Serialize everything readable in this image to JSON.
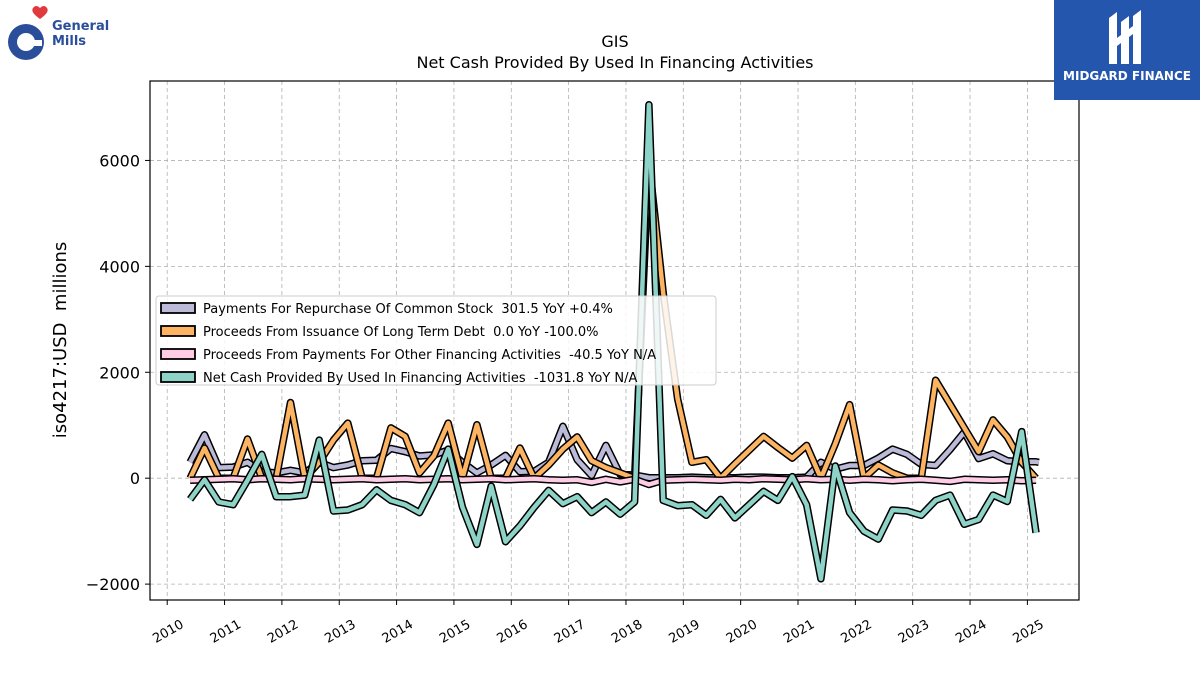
{
  "branding": {
    "left_logo_text": [
      "General",
      "Mills"
    ],
    "right_logo_text": "MIDGARD FINANCE"
  },
  "colors": {
    "repurchase": "#bcbad9",
    "issuance": "#fdb462",
    "other": "#fccde5",
    "net": "#8dd3c7",
    "outline": "#000000",
    "grid": "#b0b0b0"
  },
  "chart_data": {
    "type": "line",
    "title": "GIS",
    "subtitle": "Net Cash Provided By Used In Financing Activities",
    "xlabel": "",
    "ylabel": "iso4217:USD  millions",
    "xlim": [
      2009.7,
      2025.9
    ],
    "ylim": [
      -2300,
      7500
    ],
    "yticks": [
      -2000,
      0,
      2000,
      4000,
      6000
    ],
    "ytick_labels": [
      "−2000",
      "0",
      "2000",
      "4000",
      "6000"
    ],
    "xticks": [
      2010,
      2011,
      2012,
      2013,
      2014,
      2015,
      2016,
      2017,
      2018,
      2019,
      2020,
      2021,
      2022,
      2023,
      2024,
      2025
    ],
    "xtick_labels": [
      "2010",
      "2011",
      "2012",
      "2013",
      "2014",
      "2015",
      "2016",
      "2017",
      "2018",
      "2019",
      "2020",
      "2021",
      "2022",
      "2023",
      "2024",
      "2025"
    ],
    "grid": true,
    "legend_position": "center-left",
    "series": [
      {
        "name": "Payments For Repurchase Of Common Stock  301.5 YoY +0.4%",
        "color_key": "repurchase",
        "points": [
          [
            2010.4,
            300
          ],
          [
            2010.65,
            820
          ],
          [
            2010.9,
            200
          ],
          [
            2011.15,
            210
          ],
          [
            2011.4,
            300
          ],
          [
            2011.65,
            120
          ],
          [
            2011.9,
            100
          ],
          [
            2012.15,
            150
          ],
          [
            2012.4,
            100
          ],
          [
            2012.65,
            300
          ],
          [
            2012.9,
            200
          ],
          [
            2013.15,
            250
          ],
          [
            2013.4,
            330
          ],
          [
            2013.65,
            340
          ],
          [
            2013.9,
            560
          ],
          [
            2014.15,
            500
          ],
          [
            2014.4,
            420
          ],
          [
            2014.65,
            440
          ],
          [
            2014.9,
            530
          ],
          [
            2015.15,
            300
          ],
          [
            2015.4,
            100
          ],
          [
            2015.65,
            250
          ],
          [
            2015.9,
            430
          ],
          [
            2016.15,
            120
          ],
          [
            2016.4,
            130
          ],
          [
            2016.65,
            300
          ],
          [
            2016.9,
            980
          ],
          [
            2017.15,
            350
          ],
          [
            2017.4,
            50
          ],
          [
            2017.65,
            620
          ],
          [
            2017.9,
            70
          ],
          [
            2018.15,
            60
          ],
          [
            2018.4,
            10
          ],
          [
            2018.65,
            10
          ],
          [
            2018.9,
            10
          ],
          [
            2019.15,
            20
          ],
          [
            2019.4,
            10
          ],
          [
            2019.65,
            10
          ],
          [
            2019.9,
            10
          ],
          [
            2020.15,
            20
          ],
          [
            2020.4,
            20
          ],
          [
            2020.65,
            10
          ],
          [
            2020.9,
            10
          ],
          [
            2021.15,
            20
          ],
          [
            2021.4,
            300
          ],
          [
            2021.65,
            170
          ],
          [
            2021.9,
            240
          ],
          [
            2022.15,
            240
          ],
          [
            2022.4,
            380
          ],
          [
            2022.65,
            550
          ],
          [
            2022.9,
            450
          ],
          [
            2023.15,
            260
          ],
          [
            2023.4,
            240
          ],
          [
            2023.65,
            540
          ],
          [
            2023.9,
            870
          ],
          [
            2024.15,
            370
          ],
          [
            2024.4,
            460
          ],
          [
            2024.65,
            330
          ],
          [
            2024.9,
            310
          ],
          [
            2025.15,
            310
          ],
          [
            2025.2,
            300
          ]
        ]
      },
      {
        "name": "Proceeds From Issuance Of Long Term Debt  0.0 YoY -100.0%",
        "color_key": "issuance",
        "points": [
          [
            2010.4,
            0
          ],
          [
            2010.65,
            570
          ],
          [
            2010.9,
            0
          ],
          [
            2011.15,
            0
          ],
          [
            2011.4,
            740
          ],
          [
            2011.65,
            0
          ],
          [
            2011.9,
            0
          ],
          [
            2012.15,
            1430
          ],
          [
            2012.4,
            0
          ],
          [
            2012.65,
            300
          ],
          [
            2012.9,
            720
          ],
          [
            2013.15,
            1040
          ],
          [
            2013.4,
            0
          ],
          [
            2013.65,
            0
          ],
          [
            2013.9,
            950
          ],
          [
            2014.15,
            790
          ],
          [
            2014.4,
            100
          ],
          [
            2014.65,
            420
          ],
          [
            2014.9,
            1040
          ],
          [
            2015.15,
            0
          ],
          [
            2015.4,
            1010
          ],
          [
            2015.65,
            0
          ],
          [
            2015.9,
            0
          ],
          [
            2016.15,
            570
          ],
          [
            2016.4,
            0
          ],
          [
            2016.65,
            250
          ],
          [
            2016.9,
            550
          ],
          [
            2017.15,
            780
          ],
          [
            2017.4,
            330
          ],
          [
            2017.65,
            200
          ],
          [
            2017.9,
            100
          ],
          [
            2018.15,
            0
          ],
          [
            2018.4,
            6000
          ],
          [
            2018.65,
            3500
          ],
          [
            2018.9,
            1500
          ],
          [
            2019.15,
            300
          ],
          [
            2019.4,
            350
          ],
          [
            2019.65,
            0
          ],
          [
            2019.9,
            270
          ],
          [
            2020.15,
            530
          ],
          [
            2020.4,
            790
          ],
          [
            2020.65,
            580
          ],
          [
            2020.9,
            380
          ],
          [
            2021.15,
            620
          ],
          [
            2021.4,
            0
          ],
          [
            2021.65,
            650
          ],
          [
            2021.9,
            1390
          ],
          [
            2022.15,
            0
          ],
          [
            2022.4,
            250
          ],
          [
            2022.65,
            100
          ],
          [
            2022.9,
            0
          ],
          [
            2023.15,
            0
          ],
          [
            2023.4,
            1850
          ],
          [
            2023.65,
            1400
          ],
          [
            2023.9,
            950
          ],
          [
            2024.15,
            500
          ],
          [
            2024.4,
            1100
          ],
          [
            2024.65,
            780
          ],
          [
            2024.9,
            300
          ],
          [
            2025.15,
            0
          ]
        ]
      },
      {
        "name": "Proceeds From Payments For Other Financing Activities  -40.5 YoY N/A",
        "color_key": "other",
        "points": [
          [
            2010.4,
            -40
          ],
          [
            2010.65,
            -30
          ],
          [
            2010.9,
            -20
          ],
          [
            2011.15,
            -10
          ],
          [
            2011.4,
            -30
          ],
          [
            2011.65,
            -10
          ],
          [
            2011.9,
            -20
          ],
          [
            2012.15,
            -30
          ],
          [
            2012.4,
            -10
          ],
          [
            2012.65,
            -20
          ],
          [
            2012.9,
            -30
          ],
          [
            2013.15,
            -20
          ],
          [
            2013.4,
            -10
          ],
          [
            2013.65,
            -30
          ],
          [
            2013.9,
            -20
          ],
          [
            2014.15,
            -10
          ],
          [
            2014.4,
            -30
          ],
          [
            2014.65,
            -20
          ],
          [
            2014.9,
            -10
          ],
          [
            2015.15,
            -30
          ],
          [
            2015.4,
            -20
          ],
          [
            2015.65,
            -10
          ],
          [
            2015.9,
            -30
          ],
          [
            2016.15,
            -20
          ],
          [
            2016.4,
            -10
          ],
          [
            2016.65,
            -30
          ],
          [
            2016.9,
            -40
          ],
          [
            2017.15,
            -30
          ],
          [
            2017.4,
            -80
          ],
          [
            2017.65,
            -20
          ],
          [
            2017.9,
            -70
          ],
          [
            2018.15,
            -20
          ],
          [
            2018.4,
            -120
          ],
          [
            2018.65,
            -40
          ],
          [
            2018.9,
            -30
          ],
          [
            2019.15,
            -20
          ],
          [
            2019.4,
            -30
          ],
          [
            2019.65,
            -40
          ],
          [
            2019.9,
            -20
          ],
          [
            2020.15,
            -30
          ],
          [
            2020.4,
            -10
          ],
          [
            2020.65,
            -20
          ],
          [
            2020.9,
            -30
          ],
          [
            2021.15,
            -10
          ],
          [
            2021.4,
            -30
          ],
          [
            2021.65,
            -20
          ],
          [
            2021.9,
            -40
          ],
          [
            2022.15,
            -20
          ],
          [
            2022.4,
            -30
          ],
          [
            2022.65,
            -50
          ],
          [
            2022.9,
            -30
          ],
          [
            2023.15,
            -20
          ],
          [
            2023.4,
            -40
          ],
          [
            2023.65,
            -60
          ],
          [
            2023.9,
            -20
          ],
          [
            2024.15,
            -30
          ],
          [
            2024.4,
            -40
          ],
          [
            2024.65,
            -30
          ],
          [
            2024.9,
            -50
          ],
          [
            2025.15,
            -40
          ]
        ]
      },
      {
        "name": "Net Cash Provided By Used In Financing Activities  -1031.8 YoY N/A",
        "color_key": "net",
        "points": [
          [
            2010.4,
            -400
          ],
          [
            2010.65,
            -30
          ],
          [
            2010.9,
            -450
          ],
          [
            2011.15,
            -500
          ],
          [
            2011.4,
            -40
          ],
          [
            2011.65,
            450
          ],
          [
            2011.9,
            -350
          ],
          [
            2012.15,
            -350
          ],
          [
            2012.4,
            -320
          ],
          [
            2012.65,
            720
          ],
          [
            2012.9,
            -620
          ],
          [
            2013.15,
            -600
          ],
          [
            2013.4,
            -500
          ],
          [
            2013.65,
            -220
          ],
          [
            2013.9,
            -420
          ],
          [
            2014.15,
            -500
          ],
          [
            2014.4,
            -650
          ],
          [
            2014.65,
            -120
          ],
          [
            2014.9,
            550
          ],
          [
            2015.15,
            -550
          ],
          [
            2015.4,
            -1250
          ],
          [
            2015.65,
            -150
          ],
          [
            2015.9,
            -1200
          ],
          [
            2016.15,
            -900
          ],
          [
            2016.4,
            -550
          ],
          [
            2016.65,
            -230
          ],
          [
            2016.9,
            -480
          ],
          [
            2017.15,
            -350
          ],
          [
            2017.4,
            -650
          ],
          [
            2017.65,
            -450
          ],
          [
            2017.9,
            -680
          ],
          [
            2018.15,
            -450
          ],
          [
            2018.4,
            7050
          ],
          [
            2018.65,
            -420
          ],
          [
            2018.9,
            -520
          ],
          [
            2019.15,
            -500
          ],
          [
            2019.4,
            -700
          ],
          [
            2019.65,
            -400
          ],
          [
            2019.9,
            -750
          ],
          [
            2020.15,
            -500
          ],
          [
            2020.4,
            -250
          ],
          [
            2020.65,
            -420
          ],
          [
            2020.9,
            30
          ],
          [
            2021.15,
            -500
          ],
          [
            2021.4,
            -1900
          ],
          [
            2021.65,
            230
          ],
          [
            2021.9,
            -650
          ],
          [
            2022.15,
            -1000
          ],
          [
            2022.4,
            -1150
          ],
          [
            2022.65,
            -600
          ],
          [
            2022.9,
            -620
          ],
          [
            2023.15,
            -700
          ],
          [
            2023.4,
            -420
          ],
          [
            2023.65,
            -320
          ],
          [
            2023.9,
            -870
          ],
          [
            2024.15,
            -780
          ],
          [
            2024.4,
            -320
          ],
          [
            2024.65,
            -440
          ],
          [
            2024.9,
            880
          ],
          [
            2025.15,
            -1030
          ]
        ]
      }
    ]
  }
}
